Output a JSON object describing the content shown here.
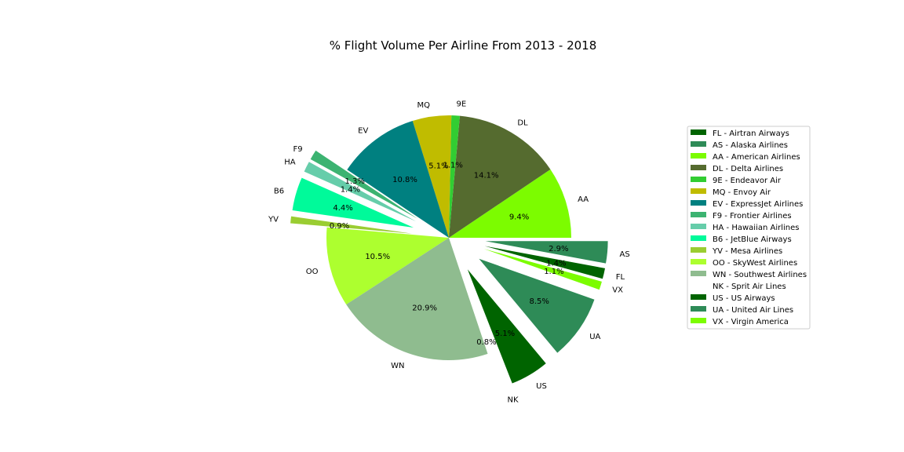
{
  "chart_data": {
    "type": "pie",
    "title": "% Flight Volume Per Airline From 2013 - 2018",
    "slices": [
      {
        "code": "FL",
        "label": "FL",
        "legend": "FL - Airtran Airways",
        "value": 1.4,
        "pct_label": "1.4%",
        "color": "#006400",
        "exploded": true
      },
      {
        "code": "AS",
        "label": "AS",
        "legend": "AS - Alaska Airlines",
        "value": 2.9,
        "pct_label": "2.9%",
        "color": "#2e8b57",
        "exploded": true
      },
      {
        "code": "AA",
        "label": "AA",
        "legend": "AA - American Airlines",
        "value": 9.4,
        "pct_label": "9.4%",
        "color": "#7cfc00",
        "exploded": false
      },
      {
        "code": "DL",
        "label": "DL",
        "legend": "DL - Delta Airlines",
        "value": 14.1,
        "pct_label": "14.1%",
        "color": "#556b2f",
        "exploded": false
      },
      {
        "code": "9E",
        "label": "9E",
        "legend": "9E - Endeavor Air",
        "value": 1.1,
        "pct_label": "1.1%",
        "color": "#32cd32",
        "exploded": false
      },
      {
        "code": "MQ",
        "label": "MQ",
        "legend": "MQ - Envoy Air",
        "value": 5.1,
        "pct_label": "5.1%",
        "color": "#c0bc00",
        "exploded": false
      },
      {
        "code": "EV",
        "label": "EV",
        "legend": "EV - ExpressJet Airlines",
        "value": 10.8,
        "pct_label": "10.8%",
        "color": "#008080",
        "exploded": false
      },
      {
        "code": "F9",
        "label": "F9",
        "legend": "F9 - Frontier Airlines",
        "value": 1.3,
        "pct_label": "1.3%",
        "color": "#3cb371",
        "exploded": true
      },
      {
        "code": "HA",
        "label": "HA",
        "legend": "HA - Hawaiian Airlines",
        "value": 1.4,
        "pct_label": "1.4%",
        "color": "#66cdaa",
        "exploded": true
      },
      {
        "code": "B6",
        "label": "B6",
        "legend": "B6 - JetBlue Airways",
        "value": 4.4,
        "pct_label": "4.4%",
        "color": "#00fa9a",
        "exploded": true
      },
      {
        "code": "YV",
        "label": "YV",
        "legend": "YV - Mesa Airlines",
        "value": 0.9,
        "pct_label": "0.9%",
        "color": "#9acd32",
        "exploded": true
      },
      {
        "code": "OO",
        "label": "OO",
        "legend": "OO - SkyWest Airlines",
        "value": 10.5,
        "pct_label": "10.5%",
        "color": "#adff2f",
        "exploded": false
      },
      {
        "code": "WN",
        "label": "WN",
        "legend": "WN - Southwest Airlines",
        "value": 20.9,
        "pct_label": "20.9%",
        "color": "#8fbc8f",
        "exploded": false
      },
      {
        "code": "NK",
        "label": "NK",
        "legend": "NK - Sprit Air Lines",
        "value": 0.8,
        "pct_label": "0.8%",
        "color": "#ffffff",
        "exploded": true
      },
      {
        "code": "US",
        "label": "US",
        "legend": "US - US Airways",
        "value": 5.1,
        "pct_label": "5.1%",
        "color": "#006400",
        "exploded": true
      },
      {
        "code": "UA",
        "label": "UA",
        "legend": "UA - United Air Lines",
        "value": 8.5,
        "pct_label": "8.5%",
        "color": "#2e8b57",
        "exploded": true
      },
      {
        "code": "VX",
        "label": "VX",
        "legend": "VX - Virgin America",
        "value": 1.1,
        "pct_label": "1.1%",
        "color": "#7cfc00",
        "exploded": true
      }
    ],
    "pie_order": [
      "AA",
      "DL",
      "9E",
      "MQ",
      "EV",
      "F9",
      "HA",
      "B6",
      "YV",
      "OO",
      "WN",
      "NK",
      "US",
      "UA",
      "VX",
      "FL",
      "AS"
    ],
    "legend_order": [
      "FL",
      "AS",
      "AA",
      "DL",
      "9E",
      "MQ",
      "EV",
      "F9",
      "HA",
      "B6",
      "YV",
      "OO",
      "WN",
      "NK",
      "US",
      "UA",
      "VX"
    ],
    "legend_placement": "right"
  }
}
